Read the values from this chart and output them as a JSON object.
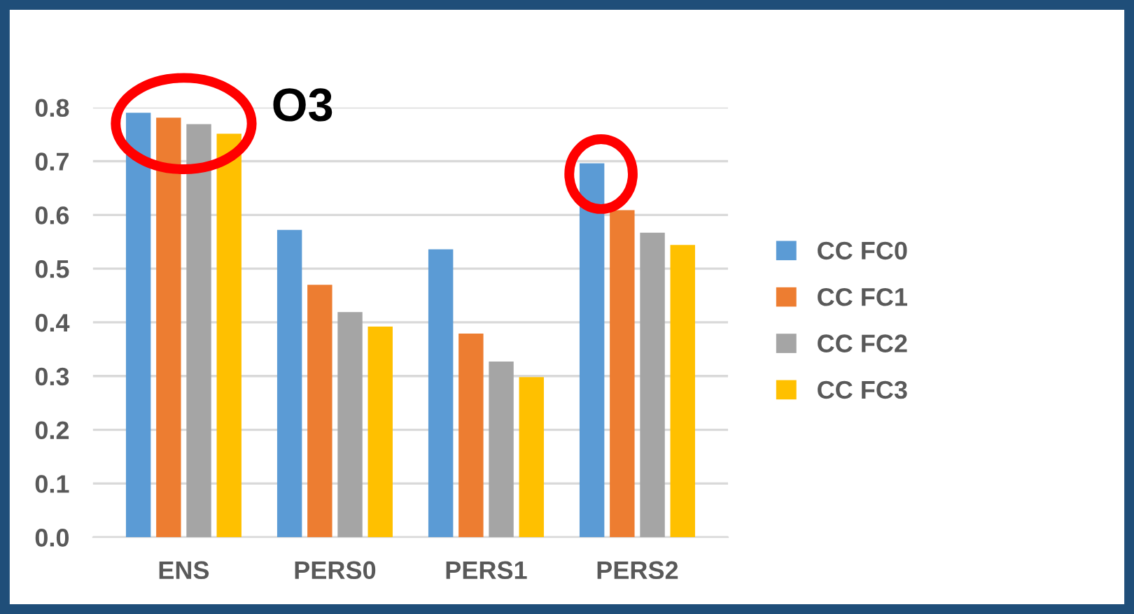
{
  "chart_data": {
    "type": "bar",
    "categories": [
      "ENS",
      "PERS0",
      "PERS1",
      "PERS2"
    ],
    "series": [
      {
        "name": "CC FC0",
        "color": "#5b9bd5",
        "values": [
          0.79,
          0.572,
          0.536,
          0.696
        ]
      },
      {
        "name": "CC FC1",
        "color": "#ed7d31",
        "values": [
          0.781,
          0.47,
          0.379,
          0.609
        ]
      },
      {
        "name": "CC FC2",
        "color": "#a5a5a5",
        "values": [
          0.769,
          0.419,
          0.327,
          0.567
        ]
      },
      {
        "name": "CC FC3",
        "color": "#ffc000",
        "values": [
          0.751,
          0.392,
          0.298,
          0.544
        ]
      }
    ],
    "ylim": [
      0,
      0.8
    ],
    "yticks": [
      {
        "value": 0,
        "label": "0.0"
      },
      {
        "value": 0.1,
        "label": "0.1"
      },
      {
        "value": 0.2,
        "label": "0.2"
      },
      {
        "value": 0.3,
        "label": "0.3"
      },
      {
        "value": 0.4,
        "label": "0.4"
      },
      {
        "value": 0.5,
        "label": "0.5"
      },
      {
        "value": 0.6,
        "label": "0.6"
      },
      {
        "value": 0.7,
        "label": "0.7"
      },
      {
        "value": 0.8,
        "label": "0.8"
      }
    ],
    "grid": "y",
    "legend": "right",
    "annotations": [
      "O3"
    ]
  }
}
